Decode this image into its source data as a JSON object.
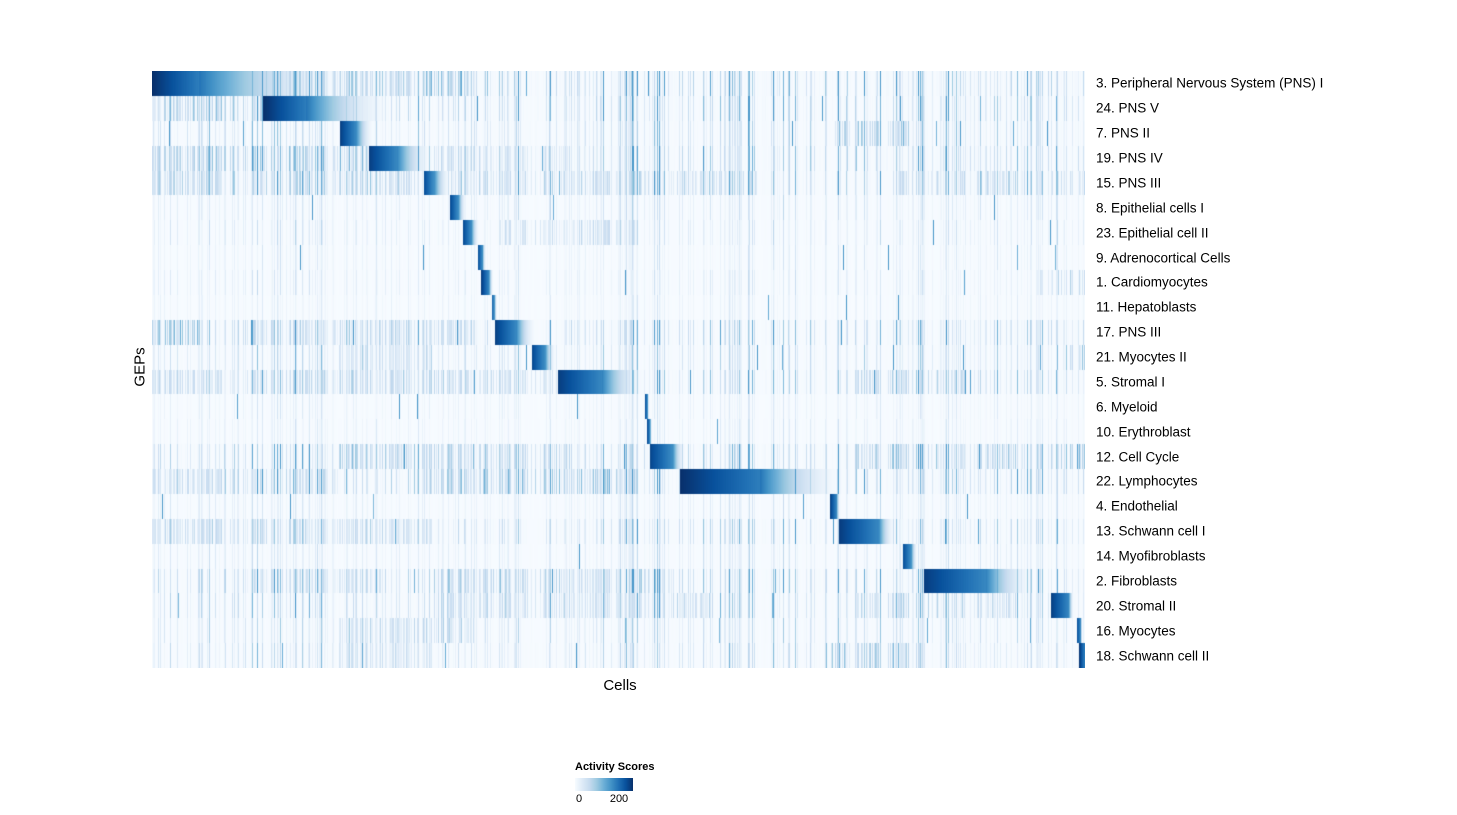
{
  "chart_data": {
    "type": "heatmap",
    "title": "",
    "xlabel": "Cells",
    "ylabel": "GEPs",
    "colorbar": {
      "title": "Activity Scores",
      "min": 0,
      "max": 200,
      "min_label": "0",
      "max_label": "200"
    },
    "colormap": [
      [
        0.0,
        247,
        251,
        255
      ],
      [
        0.125,
        222,
        235,
        247
      ],
      [
        0.25,
        198,
        219,
        239
      ],
      [
        0.375,
        158,
        202,
        225
      ],
      [
        0.5,
        107,
        174,
        214
      ],
      [
        0.625,
        66,
        146,
        198
      ],
      [
        0.75,
        33,
        113,
        181
      ],
      [
        0.875,
        8,
        81,
        156
      ],
      [
        1.0,
        8,
        48,
        107
      ]
    ],
    "rows": [
      {
        "label": "3. Peripheral Nervous System (PNS) I",
        "start": 0.0,
        "solid": 0.05,
        "fade": 0.215,
        "peak": 1.0,
        "noise": 0.85,
        "noise_bands": [
          [
            0.12,
            0.35,
            0.5
          ]
        ]
      },
      {
        "label": "24. PNS V",
        "start": 0.119,
        "solid": 0.165,
        "fade": 0.26,
        "peak": 1.0,
        "noise": 0.75,
        "noise_bands": [
          [
            0.0,
            0.12,
            0.45
          ]
        ]
      },
      {
        "label": "7. PNS II",
        "start": 0.201,
        "solid": 0.218,
        "fade": 0.238,
        "peak": 0.95,
        "noise": 0.55,
        "noise_bands": [
          [
            0.73,
            0.82,
            0.5
          ]
        ]
      },
      {
        "label": "19. PNS IV",
        "start": 0.232,
        "solid": 0.262,
        "fade": 0.302,
        "peak": 0.95,
        "noise": 0.8,
        "noise_bands": [
          [
            0.0,
            0.23,
            0.45
          ],
          [
            0.3,
            0.45,
            0.3
          ]
        ]
      },
      {
        "label": "15. PNS III",
        "start": 0.291,
        "solid": 0.302,
        "fade": 0.32,
        "peak": 0.9,
        "noise": 0.7,
        "noise_bands": [
          [
            0.0,
            0.29,
            0.4
          ],
          [
            0.32,
            0.65,
            0.35
          ],
          [
            0.8,
            1.0,
            0.35
          ]
        ]
      },
      {
        "label": "8. Epithelial cells I",
        "start": 0.319,
        "solid": 0.328,
        "fade": 0.337,
        "peak": 0.92,
        "noise": 0.3
      },
      {
        "label": "23. Epithelial cell II",
        "start": 0.333,
        "solid": 0.342,
        "fade": 0.351,
        "peak": 0.92,
        "noise": 0.3,
        "noise_bands": [
          [
            0.37,
            0.52,
            0.3
          ]
        ]
      },
      {
        "label": "9. Adrenocortical Cells",
        "start": 0.349,
        "solid": 0.354,
        "fade": 0.358,
        "peak": 0.9,
        "noise": 0.2
      },
      {
        "label": "1. Cardiomyocytes",
        "start": 0.353,
        "solid": 0.361,
        "fade": 0.366,
        "peak": 0.95,
        "noise": 0.25,
        "noise_bands": [
          [
            0.95,
            1.0,
            0.35
          ]
        ]
      },
      {
        "label": "11. Hepatoblasts",
        "start": 0.364,
        "solid": 0.367,
        "fade": 0.37,
        "peak": 0.85,
        "noise": 0.18
      },
      {
        "label": "17. PNS III",
        "start": 0.367,
        "solid": 0.39,
        "fade": 0.412,
        "peak": 0.95,
        "noise": 0.7,
        "noise_bands": [
          [
            0.0,
            0.05,
            0.6
          ],
          [
            0.1,
            0.35,
            0.35
          ]
        ]
      },
      {
        "label": "21. Myocytes II",
        "start": 0.407,
        "solid": 0.421,
        "fade": 0.433,
        "peak": 0.92,
        "noise": 0.45,
        "noise_bands": [
          [
            0.2,
            0.3,
            0.35
          ],
          [
            0.98,
            1.0,
            0.5
          ]
        ]
      },
      {
        "label": "5. Stromal I",
        "start": 0.435,
        "solid": 0.482,
        "fade": 0.53,
        "peak": 0.95,
        "noise": 0.65,
        "noise_bands": [
          [
            0.0,
            0.43,
            0.35
          ],
          [
            0.75,
            0.88,
            0.4
          ]
        ]
      },
      {
        "label": "6. Myeloid",
        "start": 0.528,
        "solid": 0.531,
        "fade": 0.533,
        "peak": 0.95,
        "noise": 0.2
      },
      {
        "label": "10. Erythroblast",
        "start": 0.531,
        "solid": 0.534,
        "fade": 0.536,
        "peak": 0.9,
        "noise": 0.2
      },
      {
        "label": "12. Cell Cycle",
        "start": 0.534,
        "solid": 0.558,
        "fade": 0.572,
        "peak": 0.92,
        "noise": 0.75,
        "noise_bands": [
          [
            0.2,
            0.45,
            0.45
          ],
          [
            0.75,
            1.0,
            0.45
          ]
        ]
      },
      {
        "label": "22. Lymphocytes",
        "start": 0.566,
        "solid": 0.652,
        "fade": 0.745,
        "peak": 1.0,
        "noise": 0.8,
        "noise_bands": [
          [
            0.28,
            0.52,
            0.5
          ],
          [
            0.0,
            0.2,
            0.3
          ]
        ]
      },
      {
        "label": "4. Endothelial",
        "start": 0.727,
        "solid": 0.734,
        "fade": 0.738,
        "peak": 0.95,
        "noise": 0.25
      },
      {
        "label": "13. Schwann cell I",
        "start": 0.737,
        "solid": 0.779,
        "fade": 0.797,
        "peak": 0.95,
        "noise": 0.6,
        "noise_bands": [
          [
            0.0,
            0.3,
            0.35
          ]
        ]
      },
      {
        "label": "14. Myofibroblasts",
        "start": 0.805,
        "solid": 0.814,
        "fade": 0.821,
        "peak": 0.9,
        "noise": 0.3
      },
      {
        "label": "2. Fibroblasts",
        "start": 0.828,
        "solid": 0.894,
        "fade": 0.947,
        "peak": 0.95,
        "noise": 0.7,
        "noise_bands": [
          [
            0.3,
            0.56,
            0.45
          ],
          [
            0.1,
            0.25,
            0.3
          ]
        ]
      },
      {
        "label": "20. Stromal II",
        "start": 0.964,
        "solid": 0.983,
        "fade": 0.989,
        "peak": 0.95,
        "noise": 0.6,
        "noise_bands": [
          [
            0.3,
            0.6,
            0.35
          ],
          [
            0.75,
            0.95,
            0.35
          ]
        ]
      },
      {
        "label": "16. Myocytes",
        "start": 0.992,
        "solid": 0.996,
        "fade": 0.998,
        "peak": 0.9,
        "noise": 0.4,
        "noise_bands": [
          [
            0.2,
            0.35,
            0.35
          ]
        ]
      },
      {
        "label": "18. Schwann cell II",
        "start": 0.994,
        "solid": 1.0,
        "fade": 1.0,
        "peak": 1.0,
        "noise": 0.45,
        "noise_bands": [
          [
            0.72,
            0.83,
            0.5
          ],
          [
            0.2,
            0.3,
            0.3
          ]
        ]
      }
    ]
  }
}
